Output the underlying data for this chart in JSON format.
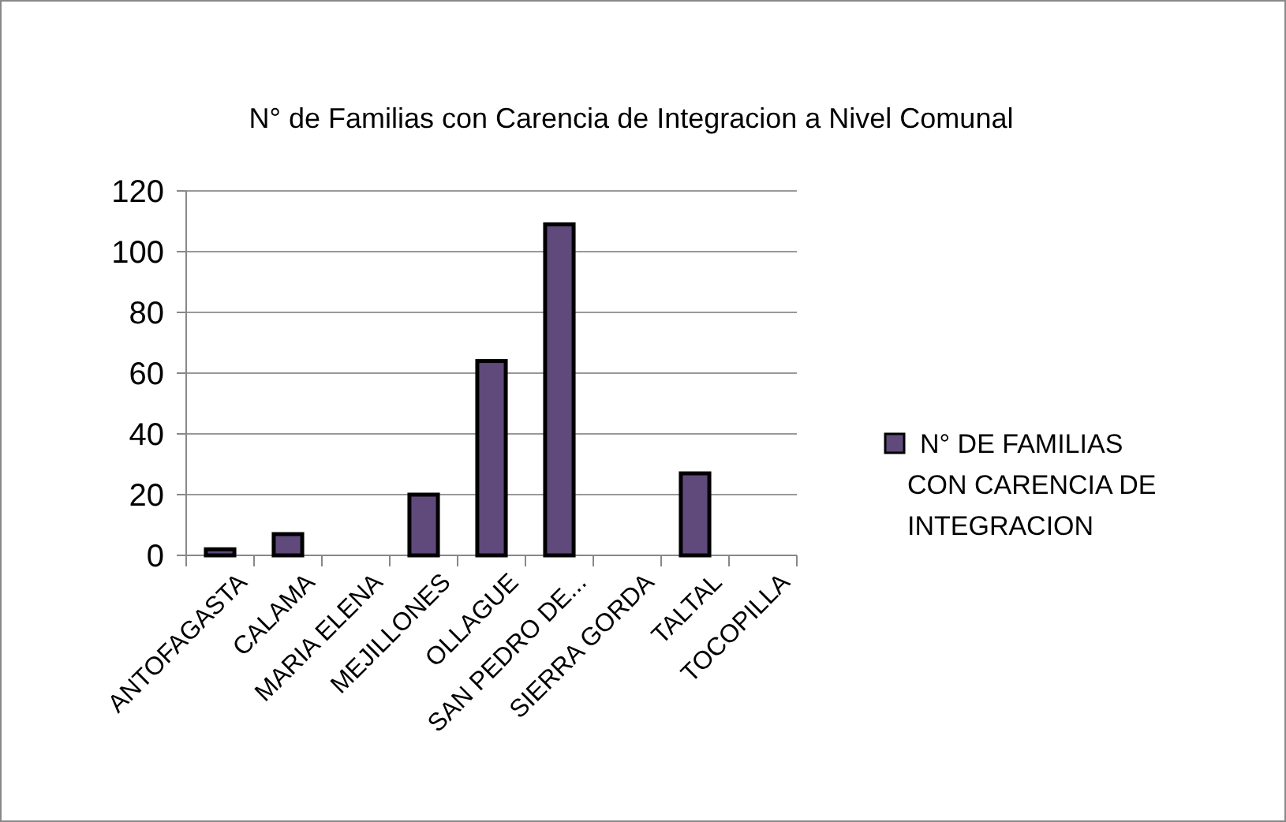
{
  "chart_data": {
    "type": "bar",
    "title": "N° de Familias con Carencia de Integracion a Nivel Comunal",
    "categories": [
      "ANTOFAGASTA",
      "CALAMA",
      "MARIA ELENA",
      "MEJILLONES",
      "OLLAGUE",
      "SAN PEDRO DE...",
      "SIERRA GORDA",
      "TALTAL",
      "TOCOPILLA"
    ],
    "series": [
      {
        "name": "N° DE FAMILIAS CON CARENCIA DE INTEGRACION",
        "color": "#604a7b",
        "values": [
          2,
          7,
          0,
          20,
          64,
          109,
          0,
          27,
          0
        ]
      }
    ],
    "ylim": [
      0,
      120
    ],
    "yticks": [
      0,
      20,
      40,
      60,
      80,
      100,
      120
    ],
    "grid": "y",
    "legend": "right"
  }
}
